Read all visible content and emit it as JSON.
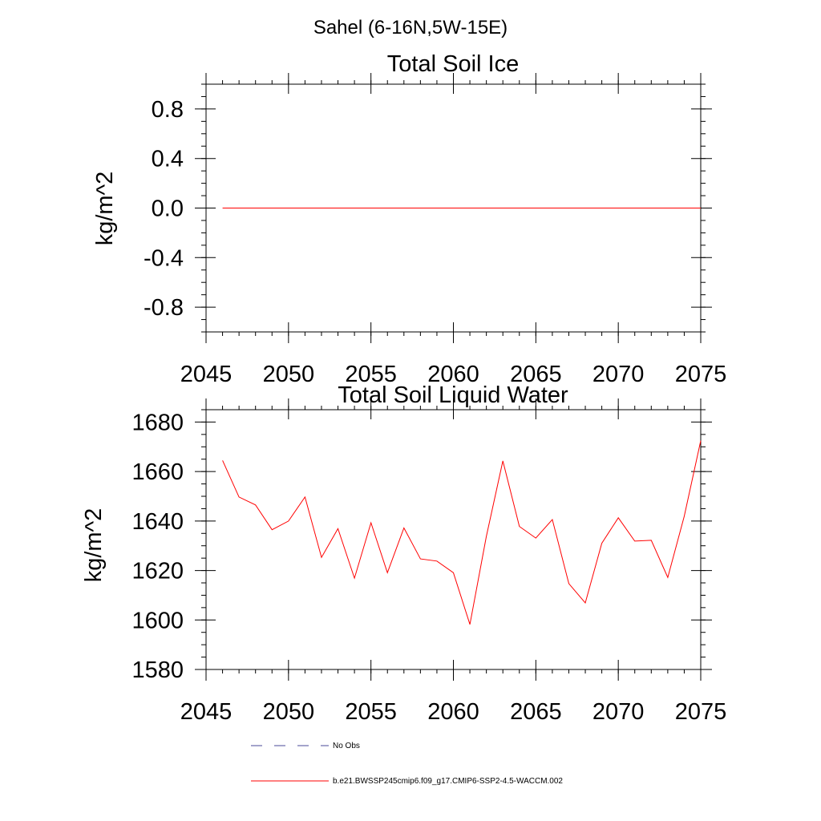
{
  "figure": {
    "suptitle": "Sahel (6-16N,5W-15E)"
  },
  "chart_data": [
    {
      "type": "line",
      "title": "Total Soil Ice",
      "xlabel": "",
      "ylabel": "kg/m^2",
      "xlim": [
        2045,
        2075
      ],
      "ylim": [
        -1.0,
        1.0
      ],
      "xticks": [
        "2045",
        "2050",
        "2055",
        "2060",
        "2065",
        "2070",
        "2075"
      ],
      "yticks": [
        "-0.8",
        "-0.4",
        "0.0",
        "0.4",
        "0.8"
      ],
      "grid": false,
      "series": [
        {
          "name": "b.e21.BWSSP245cmip6.f09_g17.CMIP6-SSP2-4.5-WACCM.002",
          "color": "#ff0000",
          "x": [
            2046,
            2047,
            2048,
            2049,
            2050,
            2051,
            2052,
            2053,
            2054,
            2055,
            2056,
            2057,
            2058,
            2059,
            2060,
            2061,
            2062,
            2063,
            2064,
            2065,
            2066,
            2067,
            2068,
            2069,
            2070,
            2071,
            2072,
            2073,
            2074,
            2075
          ],
          "values": [
            0,
            0,
            0,
            0,
            0,
            0,
            0,
            0,
            0,
            0,
            0,
            0,
            0,
            0,
            0,
            0,
            0,
            0,
            0,
            0,
            0,
            0,
            0,
            0,
            0,
            0,
            0,
            0,
            0,
            0
          ]
        }
      ]
    },
    {
      "type": "line",
      "title": "Total Soil Liquid Water",
      "xlabel": "",
      "ylabel": "kg/m^2",
      "xlim": [
        2045,
        2075
      ],
      "ylim": [
        1580,
        1685
      ],
      "xticks": [
        "2045",
        "2050",
        "2055",
        "2060",
        "2065",
        "2070",
        "2075"
      ],
      "yticks": [
        "1580",
        "1600",
        "1620",
        "1640",
        "1660",
        "1680"
      ],
      "grid": false,
      "series": [
        {
          "name": "b.e21.BWSSP245cmip6.f09_g17.CMIP6-SSP2-4.5-WACCM.002",
          "color": "#ff0000",
          "x": [
            2046,
            2047,
            2048,
            2049,
            2050,
            2051,
            2052,
            2053,
            2054,
            2055,
            2056,
            2057,
            2058,
            2059,
            2060,
            2061,
            2062,
            2063,
            2064,
            2065,
            2066,
            2067,
            2068,
            2069,
            2070,
            2071,
            2072,
            2073,
            2074,
            2075
          ],
          "values": [
            1664.5,
            1649.7,
            1646.5,
            1636.5,
            1640.0,
            1649.7,
            1625.3,
            1636.9,
            1616.9,
            1639.3,
            1619.1,
            1637.2,
            1624.7,
            1623.8,
            1619.1,
            1598.2,
            1633.8,
            1664.3,
            1637.8,
            1633.1,
            1640.6,
            1614.7,
            1606.9,
            1631.0,
            1641.3,
            1631.9,
            1632.2,
            1617.2,
            1641.9,
            1672.5
          ]
        }
      ]
    }
  ],
  "legend": {
    "items": [
      {
        "label": "No Obs",
        "color": "#4a4a9a",
        "dash": "dashed"
      },
      {
        "label": "b.e21.BWSSP245cmip6.f09_g17.CMIP6-SSP2-4.5-WACCM.002",
        "color": "#ff0000",
        "dash": "solid"
      }
    ]
  }
}
